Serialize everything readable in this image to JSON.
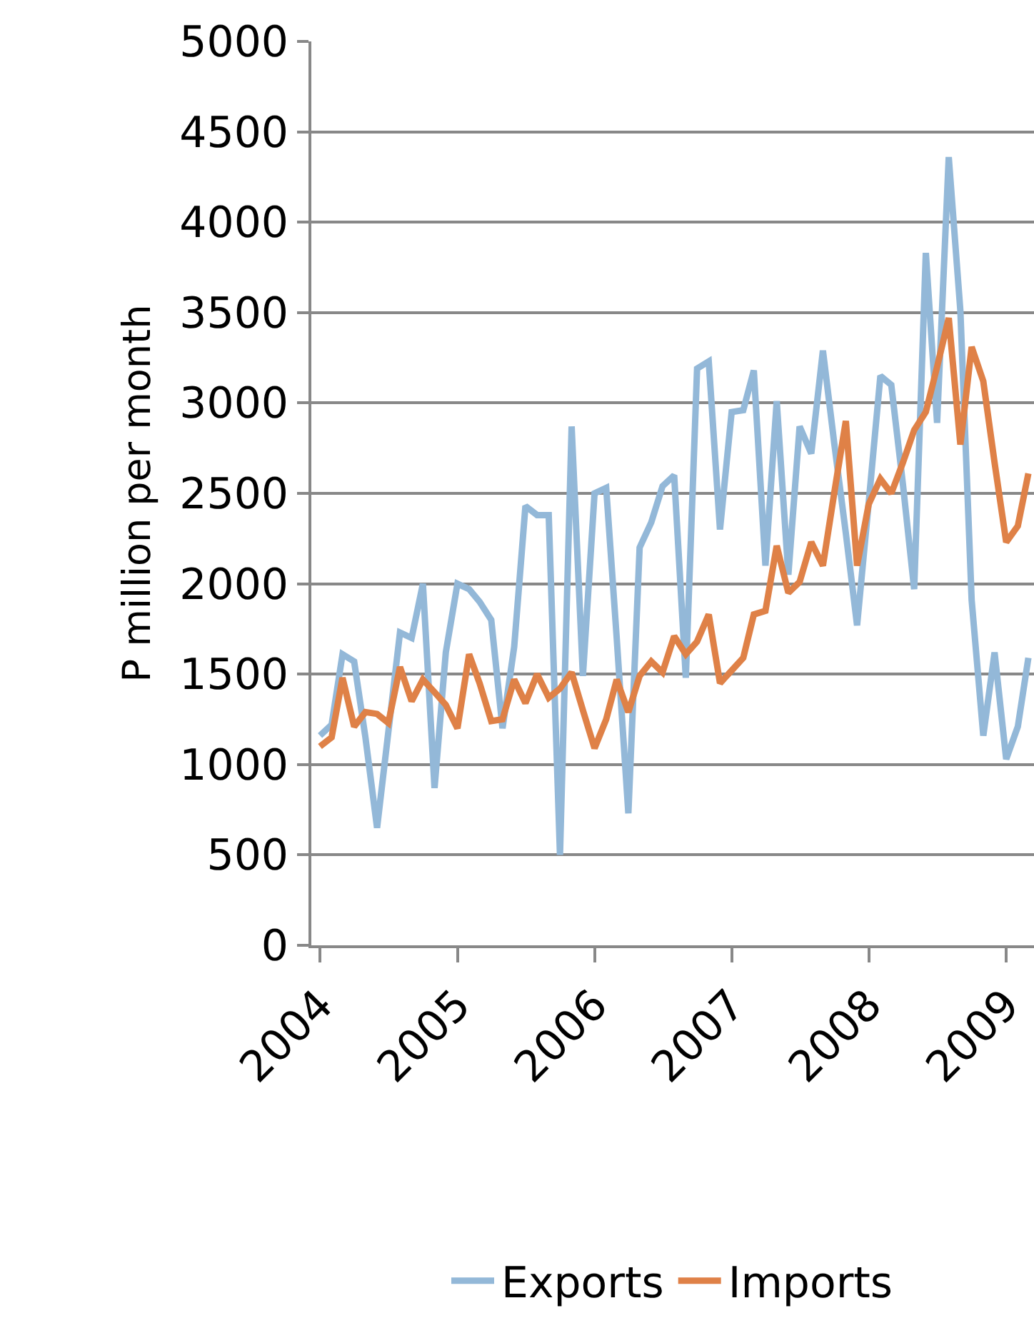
{
  "chart_data": {
    "type": "line",
    "ylabel": "P million per month",
    "x": [
      "2004-01",
      "2004-02",
      "2004-03",
      "2004-04",
      "2004-05",
      "2004-06",
      "2004-07",
      "2004-08",
      "2004-09",
      "2004-10",
      "2004-11",
      "2004-12",
      "2005-01",
      "2005-02",
      "2005-03",
      "2005-04",
      "2005-05",
      "2005-06",
      "2005-07",
      "2005-08",
      "2005-09",
      "2005-10",
      "2005-11",
      "2005-12",
      "2006-01",
      "2006-02",
      "2006-03",
      "2006-04",
      "2006-05",
      "2006-06",
      "2006-07",
      "2006-08",
      "2006-09",
      "2006-10",
      "2006-11",
      "2006-12",
      "2007-01",
      "2007-02",
      "2007-03",
      "2007-04",
      "2007-05",
      "2007-06",
      "2007-07",
      "2007-08",
      "2007-09",
      "2007-10",
      "2007-11",
      "2007-12",
      "2008-01",
      "2008-02",
      "2008-03",
      "2008-04",
      "2008-05",
      "2008-06",
      "2008-07",
      "2008-08",
      "2008-09",
      "2008-10",
      "2008-11",
      "2008-12",
      "2009-01",
      "2009-02",
      "2009-03"
    ],
    "series": [
      {
        "name": "Exports",
        "color": "#93b8d8",
        "values": [
          1160,
          1220,
          1610,
          1570,
          1150,
          650,
          1180,
          1730,
          1700,
          2000,
          870,
          1620,
          2000,
          1970,
          1900,
          1800,
          1200,
          1650,
          2430,
          2380,
          2380,
          500,
          2870,
          1490,
          2500,
          2530,
          1700,
          730,
          2200,
          2340,
          2540,
          2600,
          1480,
          3190,
          3230,
          2300,
          2950,
          2960,
          3180,
          2100,
          3010,
          2050,
          2870,
          2720,
          3290,
          2780,
          2280,
          1770,
          2450,
          3150,
          3100,
          2550,
          1970,
          3830,
          2890,
          4360,
          3510,
          1910,
          1160,
          1620,
          1030,
          1210,
          1590
        ]
      },
      {
        "name": "Imports",
        "color": "#df8147",
        "values": [
          1100,
          1150,
          1480,
          1210,
          1290,
          1280,
          1230,
          1540,
          1350,
          1470,
          1400,
          1330,
          1200,
          1610,
          1450,
          1240,
          1250,
          1470,
          1340,
          1500,
          1370,
          1420,
          1510,
          1300,
          1090,
          1250,
          1470,
          1290,
          1490,
          1570,
          1510,
          1710,
          1610,
          1680,
          1830,
          1450,
          1520,
          1590,
          1830,
          1850,
          2210,
          1950,
          2010,
          2230,
          2100,
          2500,
          2900,
          2100,
          2440,
          2580,
          2500,
          2670,
          2850,
          2950,
          3200,
          3470,
          2770,
          3310,
          3120,
          2670,
          2230,
          2320,
          2610
        ]
      }
    ],
    "xlim": [
      "2003-12-09",
      "2009-03-16"
    ],
    "xticks": [
      {
        "value": "2004-01-01",
        "label": "2004"
      },
      {
        "value": "2005-01-01",
        "label": "2005"
      },
      {
        "value": "2006-01-01",
        "label": "2006"
      },
      {
        "value": "2007-01-01",
        "label": "2007"
      },
      {
        "value": "2008-01-01",
        "label": "2008"
      },
      {
        "value": "2009-01-01",
        "label": "2009"
      }
    ],
    "ylim": [
      0,
      5000
    ],
    "yticks": [
      0,
      500,
      1000,
      1500,
      2000,
      2500,
      3000,
      3500,
      4000,
      4500,
      5000
    ],
    "grid": "y",
    "legend": "bottom",
    "line_style": "solid",
    "marker": "none"
  }
}
